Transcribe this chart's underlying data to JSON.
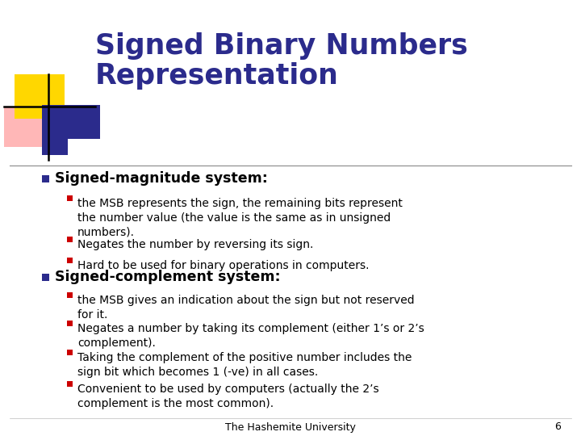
{
  "title_line1": "Signed Binary Numbers",
  "title_line2": "Representation",
  "title_color": "#2B2B8C",
  "bg_color": "#FFFFFF",
  "footer_text": "The Hashemite University",
  "footer_page": "6",
  "bullet1_main": "Signed-magnitude system:",
  "bullet1_subs": [
    "the MSB represents the sign, the remaining bits represent\nthe number value (the value is the same as in unsigned\nnumbers).",
    "Negates the number by reversing its sign.",
    "Hard to be used for binary operations in computers."
  ],
  "bullet2_main": "Signed-complement system:",
  "bullet2_subs": [
    "the MSB gives an indication about the sign but not reserved\nfor it.",
    "Negates a number by taking its complement (either 1’s or 2’s\ncomplement).",
    "Taking the complement of the positive number includes the\nsign bit which becomes 1 (-ve) in all cases.",
    "Convenient to be used by computers (actually the 2’s\ncomplement is the most common)."
  ],
  "main_bullet_color": "#2B2B8C",
  "sub_bullet_color": "#CC0000",
  "text_color": "#000000",
  "logo_yellow": "#FFD700",
  "logo_blue": "#2B2B8C",
  "logo_red": "#FF7070",
  "logo_blue_light": "#6666FF"
}
